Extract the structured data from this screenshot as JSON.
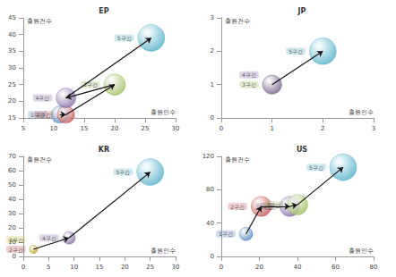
{
  "chart_data": [
    {
      "type": "scatter",
      "title": "EP",
      "xlabel": "출원인수",
      "ylabel": "출원건수",
      "xlim": [
        5,
        30
      ],
      "xticks": [
        5,
        10,
        15,
        20,
        25,
        30
      ],
      "ylim": [
        15,
        45
      ],
      "yticks": [
        15,
        20,
        25,
        30,
        35,
        40,
        45
      ],
      "grid": false,
      "series": [
        {
          "name": "1구간",
          "color": "#4f81bd",
          "x": [
            11
          ],
          "y": [
            16
          ],
          "size": [
            16
          ]
        },
        {
          "name": "2구간",
          "color": "#c0504d",
          "x": [
            12
          ],
          "y": [
            16
          ],
          "size": [
            16
          ]
        },
        {
          "name": "3구간",
          "color": "#9bbb59",
          "x": [
            20
          ],
          "y": [
            25
          ],
          "size": [
            25
          ]
        },
        {
          "name": "4구간",
          "color": "#8064a2",
          "x": [
            12
          ],
          "y": [
            21
          ],
          "size": [
            21
          ]
        },
        {
          "name": "5구간",
          "color": "#4bacc6",
          "x": [
            26
          ],
          "y": [
            39
          ],
          "size": [
            39
          ]
        }
      ]
    },
    {
      "type": "scatter",
      "title": "JP",
      "xlabel": "출원인수",
      "ylabel": "출원건수",
      "xlim": [
        0,
        3
      ],
      "xticks": [
        0,
        1,
        2,
        3
      ],
      "ylim": [
        0,
        3
      ],
      "yticks": [
        0,
        1,
        2,
        3
      ],
      "grid": false,
      "series": [
        {
          "name": "3구간",
          "color": "#9bbb59",
          "x": [
            1
          ],
          "y": [
            1
          ],
          "size": [
            1
          ]
        },
        {
          "name": "4구간",
          "color": "#8064a2",
          "x": [
            1
          ],
          "y": [
            1
          ],
          "size": [
            1
          ]
        },
        {
          "name": "5구간",
          "color": "#4bacc6",
          "x": [
            2
          ],
          "y": [
            2
          ],
          "size": [
            2
          ]
        }
      ]
    },
    {
      "type": "scatter",
      "title": "KR",
      "xlabel": "출원인수",
      "ylabel": "출원건수",
      "xlim": [
        0,
        30
      ],
      "xticks": [
        0,
        5,
        10,
        15,
        20,
        25,
        30
      ],
      "ylim": [
        0,
        70
      ],
      "yticks": [
        0,
        10,
        20,
        30,
        40,
        50,
        60,
        70
      ],
      "grid": false,
      "series": [
        {
          "name": "2구간",
          "color": "#c0504d",
          "x": [
            2
          ],
          "y": [
            5
          ],
          "size": [
            5
          ]
        },
        {
          "name": "3구간",
          "color": "#c4c43c",
          "x": [
            2
          ],
          "y": [
            5
          ],
          "size": [
            5
          ]
        },
        {
          "name": "4구간",
          "color": "#8064a2",
          "x": [
            9
          ],
          "y": [
            13
          ],
          "size": [
            13
          ]
        },
        {
          "name": "5구간",
          "color": "#4bacc6",
          "x": [
            25
          ],
          "y": [
            59
          ],
          "size": [
            59
          ]
        }
      ]
    },
    {
      "type": "scatter",
      "title": "US",
      "xlabel": "출원인수",
      "ylabel": "출원건수",
      "xlim": [
        0,
        80
      ],
      "xticks": [
        0,
        20,
        40,
        60,
        80
      ],
      "ylim": [
        0,
        120
      ],
      "yticks": [
        0,
        40,
        80,
        120
      ],
      "grid": false,
      "series": [
        {
          "name": "1구간",
          "color": "#4f81bd",
          "x": [
            13
          ],
          "y": [
            27
          ],
          "size": [
            27
          ]
        },
        {
          "name": "2구간",
          "color": "#c0504d",
          "x": [
            21
          ],
          "y": [
            60
          ],
          "size": [
            60
          ]
        },
        {
          "name": "4구간",
          "color": "#8064a2",
          "x": [
            36
          ],
          "y": [
            60
          ],
          "size": [
            60
          ]
        },
        {
          "name": "3구간",
          "color": "#9bbb59",
          "x": [
            40
          ],
          "y": [
            62
          ],
          "size": [
            62
          ]
        },
        {
          "name": "5구간",
          "color": "#4bacc6",
          "x": [
            64
          ],
          "y": [
            107
          ],
          "size": [
            107
          ]
        }
      ]
    }
  ]
}
